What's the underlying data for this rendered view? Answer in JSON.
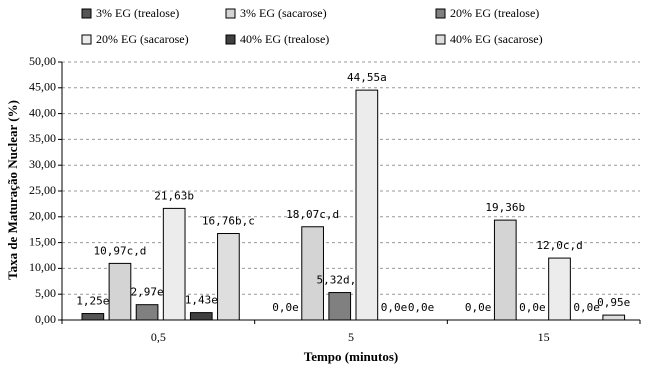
{
  "chart_data": {
    "type": "bar",
    "y_label": "Taxa de Maturação Nuclear (%)",
    "x_label": "Tempo (minutos)",
    "categories": [
      "0,5",
      "5",
      "15"
    ],
    "series": [
      {
        "name": "3% EG (trealose)",
        "color": "#555555",
        "values": [
          1.25,
          0.0,
          0.0
        ],
        "value_labels": [
          "1,25e",
          "0,0e",
          "0,0e"
        ]
      },
      {
        "name": "3% EG (sacarose)",
        "color": "#d4d4d4",
        "values": [
          10.97,
          18.07,
          19.36
        ],
        "value_labels": [
          "10,97c,d",
          "18,07c,d",
          "19,36b"
        ]
      },
      {
        "name": "20% EG (trealose)",
        "color": "#808080",
        "values": [
          2.97,
          5.32,
          0.0
        ],
        "value_labels": [
          "2,97e",
          "5,32d,e",
          "0,0e"
        ]
      },
      {
        "name": "20% EG (sacarose)",
        "color": "#ececec",
        "values": [
          21.63,
          44.55,
          12.0
        ],
        "value_labels": [
          "21,63b",
          "44,55a",
          "12,0c,d"
        ]
      },
      {
        "name": "40% EG (trealose)",
        "color": "#404040",
        "values": [
          1.43,
          0.0,
          0.0
        ],
        "value_labels": [
          "1,43e",
          "0,0e",
          "0,0e"
        ]
      },
      {
        "name": "40% EG (sacarose)",
        "color": "#dedede",
        "values": [
          16.76,
          0.0,
          0.95
        ],
        "value_labels": [
          "16,76b,c",
          "0,0e",
          "0,95e"
        ]
      }
    ],
    "ylim": [
      0,
      50
    ],
    "yticks": [
      {
        "value": 0,
        "label": "0,00"
      },
      {
        "value": 5,
        "label": "5,00"
      },
      {
        "value": 10,
        "label": "10,00"
      },
      {
        "value": 15,
        "label": "15,00"
      },
      {
        "value": 20,
        "label": "20,00"
      },
      {
        "value": 25,
        "label": "25,00"
      },
      {
        "value": 30,
        "label": "30,00"
      },
      {
        "value": 35,
        "label": "35,00"
      },
      {
        "value": 40,
        "label": "40,00"
      },
      {
        "value": 45,
        "label": "45,00"
      },
      {
        "value": 50,
        "label": "50,00"
      }
    ],
    "grid": true
  }
}
